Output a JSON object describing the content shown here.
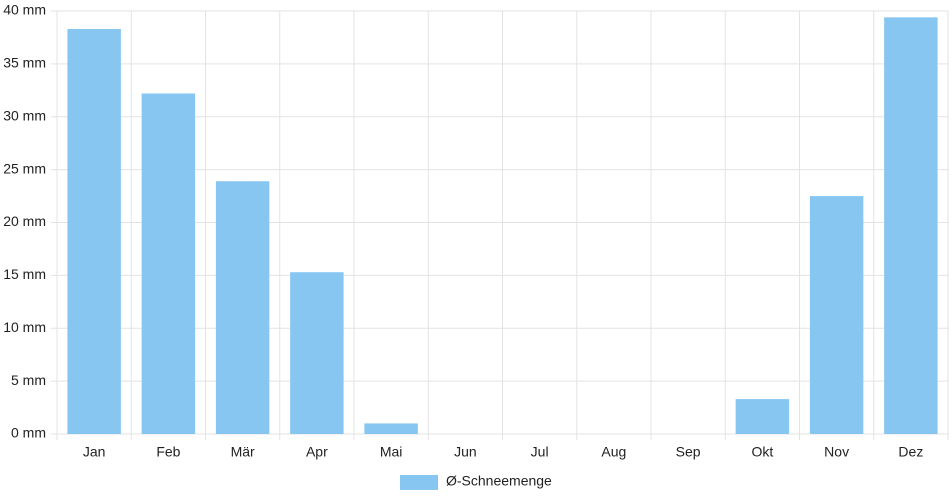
{
  "chart_data": {
    "type": "bar",
    "categories": [
      "Jan",
      "Feb",
      "Mär",
      "Apr",
      "Mai",
      "Jun",
      "Jul",
      "Aug",
      "Sep",
      "Okt",
      "Nov",
      "Dez"
    ],
    "series": [
      {
        "name": "Ø-Schneemenge",
        "color": "#87c6f1",
        "values": [
          38.3,
          32.2,
          23.9,
          15.3,
          1.0,
          0,
          0,
          0,
          0,
          3.3,
          22.5,
          39.4
        ]
      }
    ],
    "ylim": [
      0,
      40
    ],
    "yticks": [
      {
        "value": 0,
        "label": "0 mm"
      },
      {
        "value": 5,
        "label": "5 mm"
      },
      {
        "value": 10,
        "label": "10 mm"
      },
      {
        "value": 15,
        "label": "15 mm"
      },
      {
        "value": 20,
        "label": "20 mm"
      },
      {
        "value": 25,
        "label": "25 mm"
      },
      {
        "value": 30,
        "label": "30 mm"
      },
      {
        "value": 35,
        "label": "35 mm"
      },
      {
        "value": 40,
        "label": "40 mm"
      }
    ],
    "grid": true,
    "legend": "bottom"
  }
}
